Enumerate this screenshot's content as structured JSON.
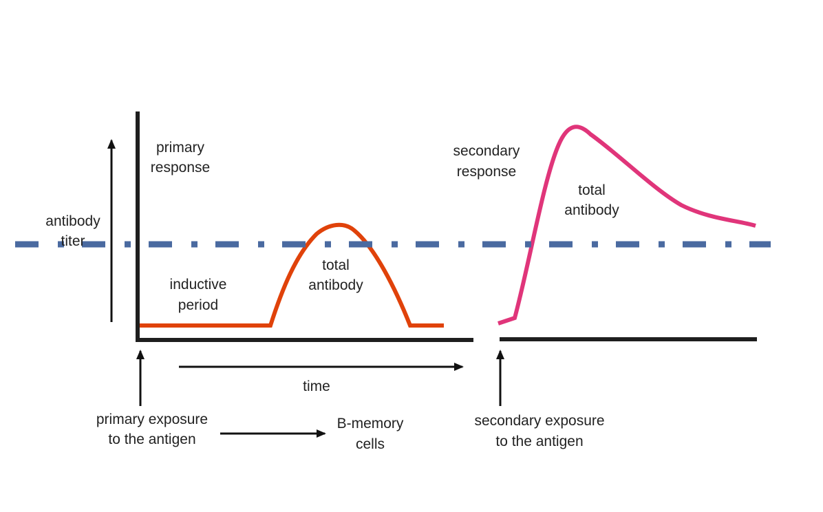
{
  "colors": {
    "axis": "#1e1e1e",
    "primary_curve": "#e0420a",
    "secondary_curve": "#e0357a",
    "threshold_line": "#4a6aa0"
  },
  "labels": {
    "y_axis": [
      "antibody",
      "titer"
    ],
    "primary_response": [
      "primary",
      "response"
    ],
    "secondary_response": [
      "secondary",
      "response"
    ],
    "inductive_period": [
      "inductive",
      "period"
    ],
    "primary_total_antibody": [
      "total",
      "antibody"
    ],
    "secondary_total_antibody": [
      "total",
      "antibody"
    ],
    "time": "time",
    "primary_exposure": [
      "primary exposure",
      "to the antigen"
    ],
    "b_memory": [
      "B-memory",
      "cells"
    ],
    "secondary_exposure": [
      "secondary exposure",
      "to the antigen"
    ]
  }
}
